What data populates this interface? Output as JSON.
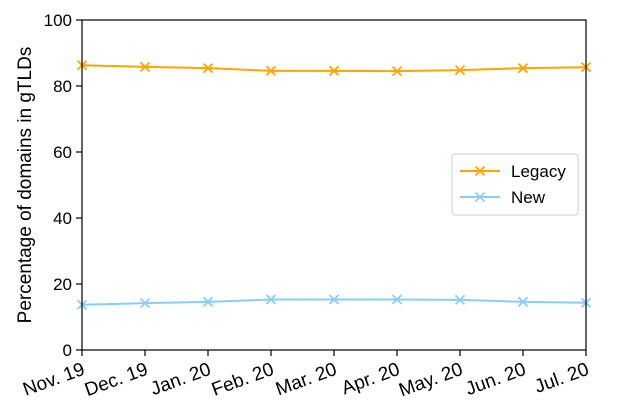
{
  "chart_data": {
    "type": "line",
    "categories": [
      "Nov. 19",
      "Dec. 19",
      "Jan. 20",
      "Feb. 20",
      "Mar. 20",
      "Apr. 20",
      "May. 20",
      "Jun. 20",
      "Jul. 20"
    ],
    "series": [
      {
        "name": "Legacy",
        "color": "#FFA500",
        "marker": "x",
        "values": [
          86.3,
          85.8,
          85.4,
          84.6,
          84.6,
          84.5,
          84.8,
          85.4,
          85.7
        ]
      },
      {
        "name": "New",
        "color": "#87CEFA",
        "marker": "x",
        "values": [
          13.7,
          14.2,
          14.6,
          15.3,
          15.3,
          15.3,
          15.2,
          14.6,
          14.3
        ]
      }
    ],
    "title": "",
    "xlabel": "",
    "ylabel": "Percentage of domains in gTLDs",
    "ylim": [
      0,
      100
    ],
    "yticks": [
      "0",
      "20",
      "40",
      "60",
      "80",
      "100"
    ],
    "grid": false,
    "legend_position": "center-right"
  }
}
